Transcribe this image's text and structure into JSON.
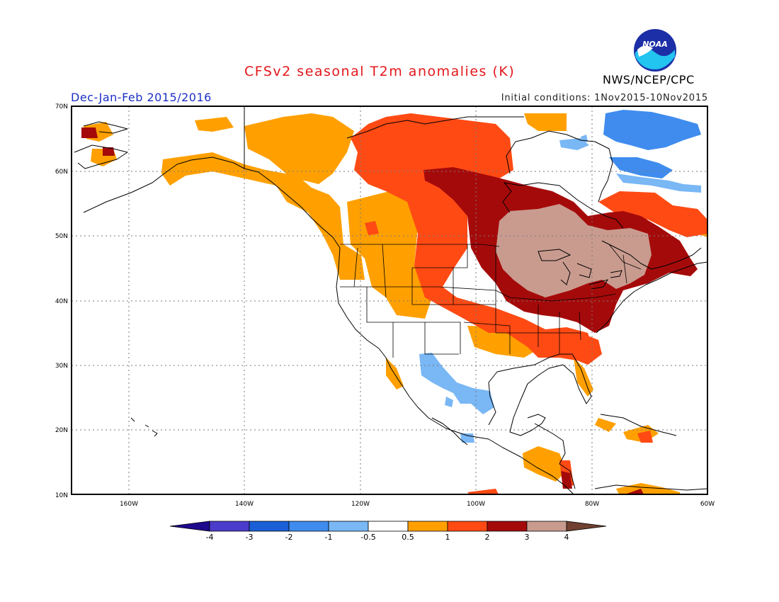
{
  "header": {
    "title": "CFSv2 seasonal T2m anomalies (K)",
    "season": "Dec-Jan-Feb 2015/2016",
    "initial_conditions": "Initial conditions: 1Nov2015-10Nov2015",
    "organization": "NWS/NCEP/CPC",
    "logo_text": "NOAA"
  },
  "map": {
    "lat_labels": [
      "70N",
      "60N",
      "50N",
      "40N",
      "30N",
      "20N",
      "10N"
    ],
    "lon_labels": [
      "160W",
      "140W",
      "120W",
      "100W",
      "80W",
      "60W"
    ]
  },
  "legend": {
    "labels": [
      "-4",
      "-3",
      "-2",
      "-1",
      "-0.5",
      "0.5",
      "1",
      "2",
      "3",
      "4"
    ],
    "colors": [
      "#1e0a8c",
      "#4b3ccc",
      "#1a5fd6",
      "#3f8cee",
      "#79b7f5",
      "#ffffff",
      "#ffa000",
      "#ff4a14",
      "#a50a0a",
      "#c99b8f",
      "#704030"
    ]
  }
}
